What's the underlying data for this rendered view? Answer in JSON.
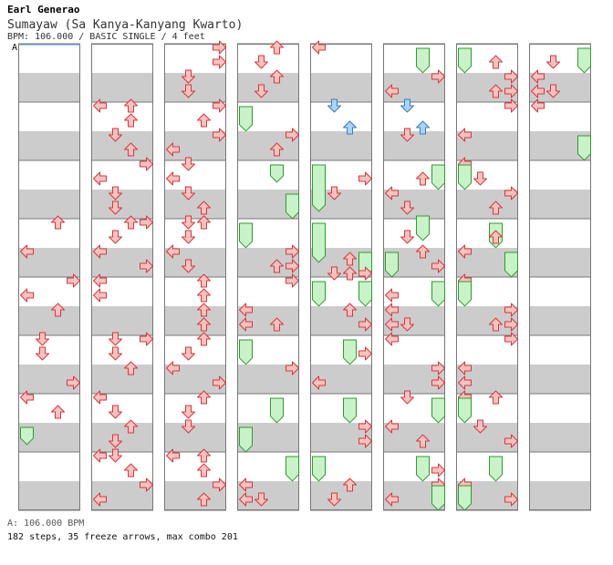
{
  "header": {
    "artist": "Earl Generao",
    "title": "Sumayaw (Sa Kanya-Kanyang Kwarto)",
    "info": "BPM: 106.000 / BASIC SINGLE / 4 feet"
  },
  "footer": {
    "bpm_line": "A: 106.000 BPM",
    "stats_line": "182 steps, 35 freeze arrows, max combo 201"
  },
  "bpm_marker": "A",
  "colors": {
    "stripe": "#cccccc",
    "lane_bg": "#ffffff",
    "border": "#777777",
    "arrow_fill": "#ffc0c0",
    "arrow_stroke": "#d03a3a",
    "freeze_fill": "#c8f2c8",
    "freeze_stroke": "#2f9a2f",
    "shock_fill": "#a8d4f5",
    "shock_stroke": "#3a7ac9"
  },
  "chart_data": {
    "type": "step-chart",
    "style": "BASIC SINGLE",
    "bpm": 106.0,
    "difficulty_feet": 4,
    "columns_count": 8,
    "measures_per_column": 8,
    "lanes": [
      "left",
      "down",
      "up",
      "right"
    ],
    "steps": 182,
    "freeze_arrows": 35,
    "max_combo": 201,
    "notes": [
      {
        "col": 0,
        "row": 24,
        "lane": "up"
      },
      {
        "col": 0,
        "row": 28,
        "lane": "left"
      },
      {
        "col": 0,
        "row": 32,
        "lane": "right"
      },
      {
        "col": 0,
        "row": 34,
        "lane": "left"
      },
      {
        "col": 0,
        "row": 36,
        "lane": "up"
      },
      {
        "col": 0,
        "row": 40,
        "lane": "down"
      },
      {
        "col": 0,
        "row": 42,
        "lane": "down"
      },
      {
        "col": 0,
        "row": 46,
        "lane": "right"
      },
      {
        "col": 0,
        "row": 48,
        "lane": "left"
      },
      {
        "col": 0,
        "row": 50,
        "lane": "up"
      },
      {
        "col": 0,
        "row": 53,
        "lane": "left",
        "freeze_end": 53.6
      },
      {
        "col": 1,
        "row": 8,
        "lane": "left"
      },
      {
        "col": 1,
        "row": 8,
        "lane": "up"
      },
      {
        "col": 1,
        "row": 10,
        "lane": "up"
      },
      {
        "col": 1,
        "row": 12,
        "lane": "down"
      },
      {
        "col": 1,
        "row": 14,
        "lane": "up"
      },
      {
        "col": 1,
        "row": 16,
        "lane": "right"
      },
      {
        "col": 1,
        "row": 18,
        "lane": "left"
      },
      {
        "col": 1,
        "row": 20,
        "lane": "down"
      },
      {
        "col": 1,
        "row": 22,
        "lane": "down"
      },
      {
        "col": 1,
        "row": 24,
        "lane": "up"
      },
      {
        "col": 1,
        "row": 24,
        "lane": "right"
      },
      {
        "col": 1,
        "row": 26,
        "lane": "down"
      },
      {
        "col": 1,
        "row": 28,
        "lane": "left"
      },
      {
        "col": 1,
        "row": 30,
        "lane": "right"
      },
      {
        "col": 1,
        "row": 32,
        "lane": "left"
      },
      {
        "col": 1,
        "row": 34,
        "lane": "left"
      },
      {
        "col": 1,
        "row": 40,
        "lane": "down"
      },
      {
        "col": 1,
        "row": 40,
        "lane": "right"
      },
      {
        "col": 1,
        "row": 42,
        "lane": "down"
      },
      {
        "col": 1,
        "row": 44,
        "lane": "up"
      },
      {
        "col": 1,
        "row": 48,
        "lane": "left"
      },
      {
        "col": 1,
        "row": 50,
        "lane": "down"
      },
      {
        "col": 1,
        "row": 52,
        "lane": "up"
      },
      {
        "col": 1,
        "row": 54,
        "lane": "down"
      },
      {
        "col": 1,
        "row": 56,
        "lane": "left"
      },
      {
        "col": 1,
        "row": 56,
        "lane": "down"
      },
      {
        "col": 1,
        "row": 58,
        "lane": "up"
      },
      {
        "col": 1,
        "row": 60,
        "lane": "right"
      },
      {
        "col": 1,
        "row": 62,
        "lane": "left"
      },
      {
        "col": 2,
        "row": 0,
        "lane": "right"
      },
      {
        "col": 2,
        "row": 2,
        "lane": "right"
      },
      {
        "col": 2,
        "row": 4,
        "lane": "down"
      },
      {
        "col": 2,
        "row": 6,
        "lane": "down"
      },
      {
        "col": 2,
        "row": 8,
        "lane": "right"
      },
      {
        "col": 2,
        "row": 10,
        "lane": "up"
      },
      {
        "col": 2,
        "row": 12,
        "lane": "right"
      },
      {
        "col": 2,
        "row": 14,
        "lane": "left"
      },
      {
        "col": 2,
        "row": 16,
        "lane": "down"
      },
      {
        "col": 2,
        "row": 18,
        "lane": "left"
      },
      {
        "col": 2,
        "row": 20,
        "lane": "down"
      },
      {
        "col": 2,
        "row": 22,
        "lane": "up"
      },
      {
        "col": 2,
        "row": 24,
        "lane": "down"
      },
      {
        "col": 2,
        "row": 24,
        "lane": "up"
      },
      {
        "col": 2,
        "row": 26,
        "lane": "down"
      },
      {
        "col": 2,
        "row": 28,
        "lane": "left"
      },
      {
        "col": 2,
        "row": 30,
        "lane": "down"
      },
      {
        "col": 2,
        "row": 32,
        "lane": "up"
      },
      {
        "col": 2,
        "row": 34,
        "lane": "up"
      },
      {
        "col": 2,
        "row": 36,
        "lane": "up"
      },
      {
        "col": 2,
        "row": 38,
        "lane": "up"
      },
      {
        "col": 2,
        "row": 40,
        "lane": "up"
      },
      {
        "col": 2,
        "row": 42,
        "lane": "down"
      },
      {
        "col": 2,
        "row": 44,
        "lane": "left"
      },
      {
        "col": 2,
        "row": 46,
        "lane": "right"
      },
      {
        "col": 2,
        "row": 48,
        "lane": "up"
      },
      {
        "col": 2,
        "row": 50,
        "lane": "down"
      },
      {
        "col": 2,
        "row": 52,
        "lane": "down"
      },
      {
        "col": 2,
        "row": 56,
        "lane": "left"
      },
      {
        "col": 2,
        "row": 56,
        "lane": "up"
      },
      {
        "col": 2,
        "row": 58,
        "lane": "up"
      },
      {
        "col": 2,
        "row": 60,
        "lane": "right"
      },
      {
        "col": 2,
        "row": 62,
        "lane": "up"
      },
      {
        "col": 3,
        "row": 0,
        "lane": "up"
      },
      {
        "col": 3,
        "row": 2,
        "lane": "down"
      },
      {
        "col": 3,
        "row": 4,
        "lane": "up"
      },
      {
        "col": 3,
        "row": 6,
        "lane": "down"
      },
      {
        "col": 3,
        "row": 9,
        "lane": "left",
        "freeze_end": 10.6
      },
      {
        "col": 3,
        "row": 12,
        "lane": "right"
      },
      {
        "col": 3,
        "row": 14,
        "lane": "up"
      },
      {
        "col": 3,
        "row": 17,
        "lane": "up",
        "freeze_end": 17.6
      },
      {
        "col": 3,
        "row": 21,
        "lane": "right",
        "freeze_end": 22.6
      },
      {
        "col": 3,
        "row": 25,
        "lane": "left",
        "freeze_end": 26.6
      },
      {
        "col": 3,
        "row": 28,
        "lane": "right"
      },
      {
        "col": 3,
        "row": 30,
        "lane": "up"
      },
      {
        "col": 3,
        "row": 30,
        "lane": "right"
      },
      {
        "col": 3,
        "row": 32,
        "lane": "right"
      },
      {
        "col": 3,
        "row": 36,
        "lane": "left"
      },
      {
        "col": 3,
        "row": 38,
        "lane": "left"
      },
      {
        "col": 3,
        "row": 38,
        "lane": "up"
      },
      {
        "col": 3,
        "row": 41,
        "lane": "left",
        "freeze_end": 42.6
      },
      {
        "col": 3,
        "row": 44,
        "lane": "right"
      },
      {
        "col": 3,
        "row": 49,
        "lane": "up",
        "freeze_end": 50.6
      },
      {
        "col": 3,
        "row": 53,
        "lane": "left",
        "freeze_end": 54.6
      },
      {
        "col": 3,
        "row": 57,
        "lane": "right",
        "freeze_end": 58.6
      },
      {
        "col": 3,
        "row": 60,
        "lane": "left"
      },
      {
        "col": 3,
        "row": 62,
        "lane": "left"
      },
      {
        "col": 3,
        "row": 62,
        "lane": "down"
      },
      {
        "col": 4,
        "row": 0,
        "lane": "left"
      },
      {
        "col": 4,
        "row": 8,
        "lane": "down",
        "shock": true
      },
      {
        "col": 4,
        "row": 11,
        "lane": "up",
        "shock": true
      },
      {
        "col": 4,
        "row": 17,
        "lane": "left",
        "freeze_end": 21.6
      },
      {
        "col": 4,
        "row": 20,
        "lane": "down"
      },
      {
        "col": 4,
        "row": 18,
        "lane": "right"
      },
      {
        "col": 4,
        "row": 25,
        "lane": "left",
        "freeze_end": 28.6
      },
      {
        "col": 4,
        "row": 29,
        "lane": "right",
        "freeze_end": 30.6
      },
      {
        "col": 4,
        "row": 29,
        "lane": "up"
      },
      {
        "col": 4,
        "row": 31,
        "lane": "down"
      },
      {
        "col": 4,
        "row": 31,
        "lane": "up"
      },
      {
        "col": 4,
        "row": 31,
        "lane": "right"
      },
      {
        "col": 4,
        "row": 33,
        "lane": "left",
        "freeze_end": 34.6
      },
      {
        "col": 4,
        "row": 33,
        "lane": "right",
        "freeze_end": 34.6
      },
      {
        "col": 4,
        "row": 36,
        "lane": "up"
      },
      {
        "col": 4,
        "row": 38,
        "lane": "right"
      },
      {
        "col": 4,
        "row": 41,
        "lane": "up",
        "freeze_end": 42.6
      },
      {
        "col": 4,
        "row": 42,
        "lane": "right"
      },
      {
        "col": 4,
        "row": 46,
        "lane": "left"
      },
      {
        "col": 4,
        "row": 49,
        "lane": "up",
        "freeze_end": 50.6
      },
      {
        "col": 4,
        "row": 52,
        "lane": "right"
      },
      {
        "col": 4,
        "row": 54,
        "lane": "right"
      },
      {
        "col": 4,
        "row": 57,
        "lane": "left",
        "freeze_end": 58.6
      },
      {
        "col": 4,
        "row": 60,
        "lane": "up"
      },
      {
        "col": 4,
        "row": 62,
        "lane": "down"
      },
      {
        "col": 5,
        "row": 1,
        "lane": "up",
        "freeze_end": 2.6
      },
      {
        "col": 5,
        "row": 4,
        "lane": "right"
      },
      {
        "col": 5,
        "row": 6,
        "lane": "left"
      },
      {
        "col": 5,
        "row": 8,
        "lane": "down",
        "shock": true
      },
      {
        "col": 5,
        "row": 11,
        "lane": "up",
        "shock": true
      },
      {
        "col": 5,
        "row": 12,
        "lane": "down"
      },
      {
        "col": 5,
        "row": 17,
        "lane": "right",
        "freeze_end": 18.6
      },
      {
        "col": 5,
        "row": 18,
        "lane": "up"
      },
      {
        "col": 5,
        "row": 20,
        "lane": "left"
      },
      {
        "col": 5,
        "row": 22,
        "lane": "down"
      },
      {
        "col": 5,
        "row": 24,
        "lane": "up",
        "freeze_end": 25.6
      },
      {
        "col": 5,
        "row": 26,
        "lane": "down"
      },
      {
        "col": 5,
        "row": 29,
        "lane": "left",
        "freeze_end": 30.6
      },
      {
        "col": 5,
        "row": 28,
        "lane": "up"
      },
      {
        "col": 5,
        "row": 30,
        "lane": "right"
      },
      {
        "col": 5,
        "row": 33,
        "lane": "right",
        "freeze_end": 34.6
      },
      {
        "col": 5,
        "row": 34,
        "lane": "left"
      },
      {
        "col": 5,
        "row": 36,
        "lane": "left"
      },
      {
        "col": 5,
        "row": 38,
        "lane": "left"
      },
      {
        "col": 5,
        "row": 38,
        "lane": "down"
      },
      {
        "col": 5,
        "row": 40,
        "lane": "left"
      },
      {
        "col": 5,
        "row": 44,
        "lane": "right"
      },
      {
        "col": 5,
        "row": 46,
        "lane": "right"
      },
      {
        "col": 5,
        "row": 48,
        "lane": "down"
      },
      {
        "col": 5,
        "row": 49,
        "lane": "right",
        "freeze_end": 50.6
      },
      {
        "col": 5,
        "row": 52,
        "lane": "left"
      },
      {
        "col": 5,
        "row": 54,
        "lane": "up"
      },
      {
        "col": 5,
        "row": 57,
        "lane": "up",
        "freeze_end": 58.6
      },
      {
        "col": 5,
        "row": 58,
        "lane": "right"
      },
      {
        "col": 5,
        "row": 60,
        "lane": "right"
      },
      {
        "col": 5,
        "row": 61,
        "lane": "right",
        "freeze_end": 62.6
      },
      {
        "col": 5,
        "row": 62,
        "lane": "left"
      },
      {
        "col": 6,
        "row": 1,
        "lane": "left",
        "freeze_end": 2.6
      },
      {
        "col": 6,
        "row": 2,
        "lane": "up"
      },
      {
        "col": 6,
        "row": 4,
        "lane": "right"
      },
      {
        "col": 6,
        "row": 6,
        "lane": "up"
      },
      {
        "col": 6,
        "row": 6,
        "lane": "right"
      },
      {
        "col": 6,
        "row": 8,
        "lane": "right"
      },
      {
        "col": 6,
        "row": 12,
        "lane": "left"
      },
      {
        "col": 6,
        "row": 16,
        "lane": "left"
      },
      {
        "col": 6,
        "row": 17,
        "lane": "left",
        "freeze_end": 18.6
      },
      {
        "col": 6,
        "row": 18,
        "lane": "down"
      },
      {
        "col": 6,
        "row": 20,
        "lane": "right"
      },
      {
        "col": 6,
        "row": 22,
        "lane": "up"
      },
      {
        "col": 6,
        "row": 25,
        "lane": "up",
        "freeze_end": 26.6
      },
      {
        "col": 6,
        "row": 26,
        "lane": "up"
      },
      {
        "col": 6,
        "row": 28,
        "lane": "left"
      },
      {
        "col": 6,
        "row": 29,
        "lane": "right",
        "freeze_end": 30.6
      },
      {
        "col": 6,
        "row": 32,
        "lane": "left"
      },
      {
        "col": 6,
        "row": 33,
        "lane": "left",
        "freeze_end": 34.6
      },
      {
        "col": 6,
        "row": 36,
        "lane": "right"
      },
      {
        "col": 6,
        "row": 38,
        "lane": "up"
      },
      {
        "col": 6,
        "row": 38,
        "lane": "right"
      },
      {
        "col": 6,
        "row": 40,
        "lane": "right"
      },
      {
        "col": 6,
        "row": 44,
        "lane": "left"
      },
      {
        "col": 6,
        "row": 46,
        "lane": "left"
      },
      {
        "col": 6,
        "row": 48,
        "lane": "left"
      },
      {
        "col": 6,
        "row": 48,
        "lane": "up"
      },
      {
        "col": 6,
        "row": 49,
        "lane": "left",
        "freeze_end": 50.6
      },
      {
        "col": 6,
        "row": 52,
        "lane": "down"
      },
      {
        "col": 6,
        "row": 54,
        "lane": "right"
      },
      {
        "col": 6,
        "row": 57,
        "lane": "up",
        "freeze_end": 58.6
      },
      {
        "col": 6,
        "row": 60,
        "lane": "left"
      },
      {
        "col": 6,
        "row": 61,
        "lane": "left",
        "freeze_end": 62.6
      },
      {
        "col": 6,
        "row": 62,
        "lane": "right"
      },
      {
        "col": 7,
        "row": 2,
        "lane": "down"
      },
      {
        "col": 7,
        "row": 1,
        "lane": "right",
        "freeze_end": 2.6
      },
      {
        "col": 7,
        "row": 4,
        "lane": "left"
      },
      {
        "col": 7,
        "row": 6,
        "lane": "left"
      },
      {
        "col": 7,
        "row": 6,
        "lane": "down"
      },
      {
        "col": 7,
        "row": 8,
        "lane": "left"
      },
      {
        "col": 7,
        "row": 13,
        "lane": "right",
        "freeze_end": 14.6
      }
    ]
  }
}
